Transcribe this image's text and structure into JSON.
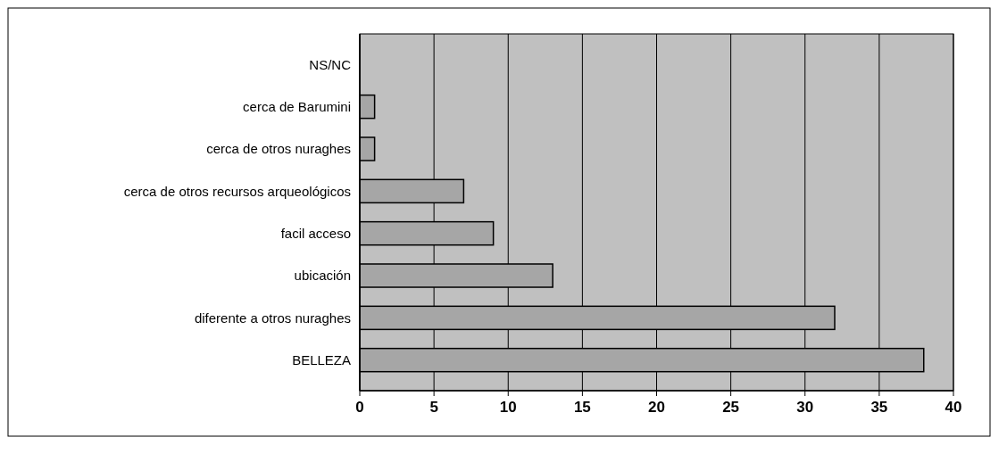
{
  "chart_data": {
    "type": "bar",
    "orientation": "horizontal",
    "categories": [
      "NS/NC",
      "cerca de Barumini",
      "cerca de otros nuraghes",
      "cerca de otros recursos arqueológicos",
      "facil acceso",
      "ubicación",
      "diferente a otros nuraghes",
      "BELLEZA"
    ],
    "values": [
      0,
      1,
      1,
      7,
      9,
      13,
      32,
      38
    ],
    "color": "#a6a6a6",
    "xlim": [
      0,
      40
    ],
    "xticks": [
      0,
      5,
      10,
      15,
      20,
      25,
      30,
      35,
      40
    ],
    "grid": "x"
  }
}
